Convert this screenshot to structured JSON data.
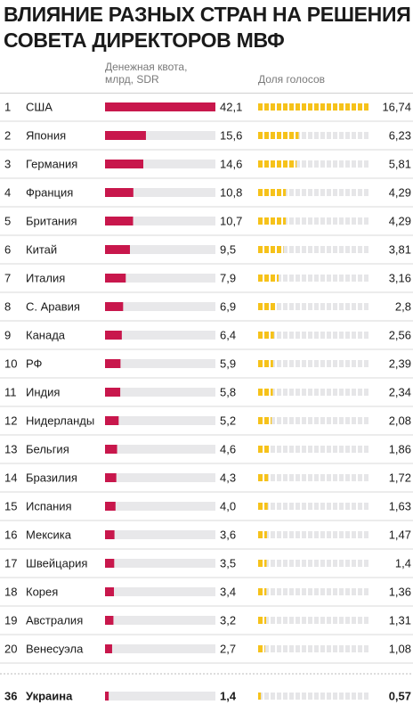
{
  "title_lines": [
    "Влияние разных стран на решения",
    "Совета директоров МВФ"
  ],
  "columns": {
    "quota": [
      "Денежная квота,",
      "млрд, SDR"
    ],
    "votes": "Доля голосов"
  },
  "colors": {
    "quota_bar": "#c8174c",
    "track": "#e8e8ea",
    "votes_filled": "#f6c21a",
    "votes_empty": "#e6e6e8"
  },
  "chart_data": {
    "type": "bar",
    "rows": [
      {
        "rank": "1",
        "country": "США",
        "quota": 42.1,
        "quota_label": "42,1",
        "votes": 16.74,
        "votes_label": "16,74"
      },
      {
        "rank": "2",
        "country": "Япония",
        "quota": 15.6,
        "quota_label": "15,6",
        "votes": 6.23,
        "votes_label": "6,23"
      },
      {
        "rank": "3",
        "country": "Германия",
        "quota": 14.6,
        "quota_label": "14,6",
        "votes": 5.81,
        "votes_label": "5,81"
      },
      {
        "rank": "4",
        "country": "Франция",
        "quota": 10.8,
        "quota_label": "10,8",
        "votes": 4.29,
        "votes_label": "4,29"
      },
      {
        "rank": "5",
        "country": "Британия",
        "quota": 10.7,
        "quota_label": "10,7",
        "votes": 4.29,
        "votes_label": "4,29"
      },
      {
        "rank": "6",
        "country": "Китай",
        "quota": 9.5,
        "quota_label": "9,5",
        "votes": 3.81,
        "votes_label": "3,81"
      },
      {
        "rank": "7",
        "country": "Италия",
        "quota": 7.9,
        "quota_label": "7,9",
        "votes": 3.16,
        "votes_label": "3,16"
      },
      {
        "rank": "8",
        "country": "С. Аравия",
        "quota": 6.9,
        "quota_label": "6,9",
        "votes": 2.8,
        "votes_label": "2,8"
      },
      {
        "rank": "9",
        "country": "Канада",
        "quota": 6.4,
        "quota_label": "6,4",
        "votes": 2.56,
        "votes_label": "2,56"
      },
      {
        "rank": "10",
        "country": "РФ",
        "quota": 5.9,
        "quota_label": "5,9",
        "votes": 2.39,
        "votes_label": "2,39"
      },
      {
        "rank": "11",
        "country": "Индия",
        "quota": 5.8,
        "quota_label": "5,8",
        "votes": 2.34,
        "votes_label": "2,34"
      },
      {
        "rank": "12",
        "country": "Нидерланды",
        "quota": 5.2,
        "quota_label": "5,2",
        "votes": 2.08,
        "votes_label": "2,08"
      },
      {
        "rank": "13",
        "country": "Бельгия",
        "quota": 4.6,
        "quota_label": "4,6",
        "votes": 1.86,
        "votes_label": "1,86"
      },
      {
        "rank": "14",
        "country": "Бразилия",
        "quota": 4.3,
        "quota_label": "4,3",
        "votes": 1.72,
        "votes_label": "1,72"
      },
      {
        "rank": "15",
        "country": "Испания",
        "quota": 4.0,
        "quota_label": "4,0",
        "votes": 1.63,
        "votes_label": "1,63"
      },
      {
        "rank": "16",
        "country": "Мексика",
        "quota": 3.6,
        "quota_label": "3,6",
        "votes": 1.47,
        "votes_label": "1,47"
      },
      {
        "rank": "17",
        "country": "Швейцария",
        "quota": 3.5,
        "quota_label": "3,5",
        "votes": 1.4,
        "votes_label": "1,4"
      },
      {
        "rank": "18",
        "country": "Корея",
        "quota": 3.4,
        "quota_label": "3,4",
        "votes": 1.36,
        "votes_label": "1,36"
      },
      {
        "rank": "19",
        "country": "Австралия",
        "quota": 3.2,
        "quota_label": "3,2",
        "votes": 1.31,
        "votes_label": "1,31"
      },
      {
        "rank": "20",
        "country": "Венесуэла",
        "quota": 2.7,
        "quota_label": "2,7",
        "votes": 1.08,
        "votes_label": "1,08"
      }
    ],
    "highlight": {
      "rank": "36",
      "country": "Украина",
      "quota": 1.4,
      "quota_label": "1,4",
      "votes": 0.57,
      "votes_label": "0,57"
    },
    "quota_max": 42.1,
    "votes_max": 16.74,
    "votes_segments": 18
  }
}
